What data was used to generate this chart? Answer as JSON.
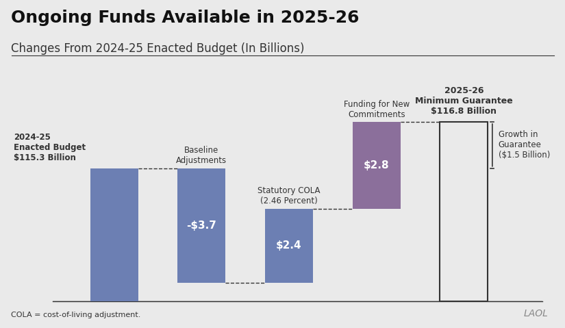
{
  "title": "Ongoing Funds Available in 2025-26",
  "subtitle": "Changes From 2024-25 Enacted Budget (In Billions)",
  "footnote": "COLA = cost-of-living adjustment.",
  "watermark": "LAOL",
  "background_color": "#eaeaea",
  "bar_width": 0.55,
  "categories": [
    "2024-25\nEnacted Budget",
    "Baseline\nAdjustments",
    "Statutory COLA\n(2.46 Percent)",
    "Funding for New\nCommitments",
    "2025-26\nMinimum Guarantee"
  ],
  "values": [
    115.3,
    -3.7,
    2.4,
    2.8,
    116.8
  ],
  "bar_colors": [
    "#6e7fb0",
    "#6e7fb0",
    "#6e7fb0",
    "#8b6f9b",
    "#ffffff"
  ],
  "bar_labels": [
    "$115.3 Billion",
    "-$3.7",
    "$2.4",
    "$2.8",
    "$116.8 Billion"
  ],
  "bar_label_colors": [
    "#000000",
    "#ffffff",
    "#ffffff",
    "#ffffff",
    "#000000"
  ],
  "blue_color": "#6c7fb3",
  "purple_color": "#8b6f9b",
  "dashed_color": "#333333",
  "annotation_color": "#000000",
  "title_fontsize": 18,
  "subtitle_fontsize": 12,
  "bar_label_fontsize": 11,
  "cat_label_fontsize": 9,
  "ylim_min": 111.0,
  "ylim_max": 118.5,
  "growth_annotation": "Growth in\nGuarantee\n($1.5 Billion)"
}
